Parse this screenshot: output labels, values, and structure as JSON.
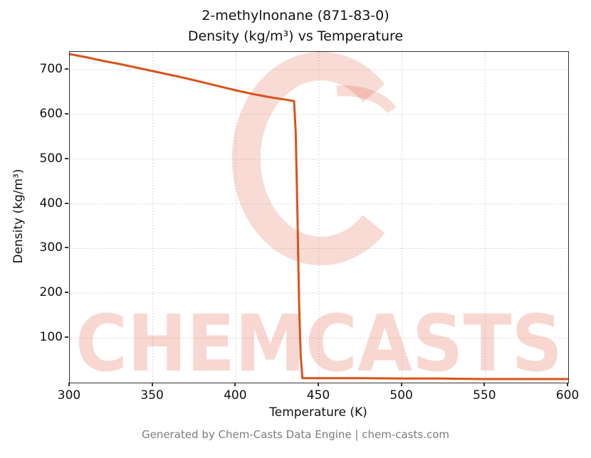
{
  "title": {
    "line1": "2-methylnonane (871-83-0)",
    "line2": "Density (kg/m³) vs Temperature"
  },
  "footer": {
    "text": "Generated by Chem-Casts Data Engine | chem-casts.com"
  },
  "watermark": {
    "text": "CHEMCASTS",
    "color": "#dd4a2c"
  },
  "chart_data": {
    "type": "line",
    "title": "2-methylnonane (871-83-0) Density (kg/m³) vs Temperature",
    "xlabel": "Temperature (K)",
    "ylabel": "Density (kg/m³)",
    "xlim": [
      300,
      600
    ],
    "ylim": [
      0,
      740
    ],
    "xticks": [
      300,
      350,
      400,
      450,
      500,
      550,
      600
    ],
    "yticks": [
      100,
      200,
      300,
      400,
      500,
      600,
      700
    ],
    "grid": true,
    "legend": "none",
    "line_color": "#d9531c",
    "series": [
      {
        "name": "density",
        "x": [
          300,
          310,
          320,
          330,
          340,
          350,
          360,
          370,
          380,
          390,
          400,
          410,
          420,
          430,
          435,
          436,
          437,
          438,
          439,
          440,
          450,
          475,
          500,
          525,
          550,
          575,
          600
        ],
        "y": [
          735,
          728,
          720,
          713,
          705,
          697,
          689,
          681,
          672,
          663,
          654,
          646,
          639,
          633,
          630,
          560,
          380,
          180,
          60,
          10,
          10,
          10,
          9,
          9,
          8,
          8,
          8
        ]
      }
    ]
  }
}
